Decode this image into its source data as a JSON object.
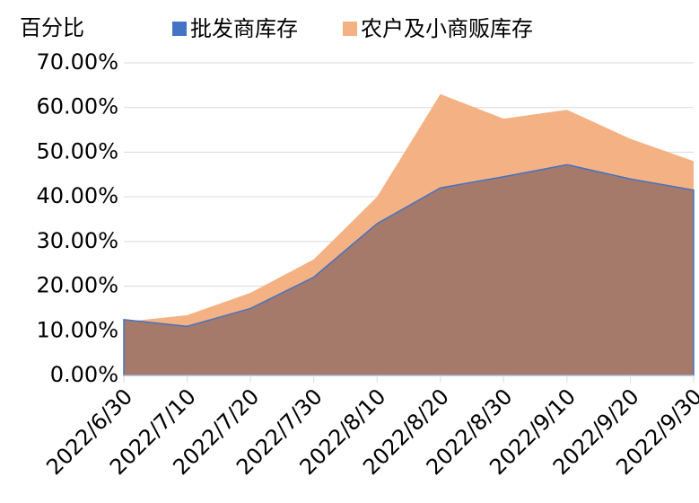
{
  "chart_data": {
    "type": "area",
    "y_axis_title": "百分比",
    "categories": [
      "2022/6/30",
      "2022/7/10",
      "2022/7/20",
      "2022/7/30",
      "2022/8/10",
      "2022/8/20",
      "2022/8/30",
      "2022/9/10",
      "2022/9/20",
      "2022/9/30"
    ],
    "series": [
      {
        "name": "批发商库存",
        "color": "#4472c4",
        "values": [
          12.5,
          11,
          15,
          22,
          34,
          42,
          44.5,
          47.2,
          44,
          41.5
        ]
      },
      {
        "name": "农户及小商贩库存",
        "color": "#f4b183",
        "values": [
          12,
          13.5,
          18.5,
          26,
          40,
          63,
          57.5,
          59.5,
          53,
          48
        ]
      }
    ],
    "overlap_color": "#a67a6b",
    "ylim": [
      0,
      70
    ],
    "yticks": [
      {
        "value": 0,
        "label": "0.00%"
      },
      {
        "value": 10,
        "label": "10.00%"
      },
      {
        "value": 20,
        "label": "20.00%"
      },
      {
        "value": 30,
        "label": "30.00%"
      },
      {
        "value": 40,
        "label": "40.00%"
      },
      {
        "value": 50,
        "label": "50.00%"
      },
      {
        "value": 60,
        "label": "60.00%"
      },
      {
        "value": 70,
        "label": "70.00%"
      }
    ],
    "grid": true
  }
}
